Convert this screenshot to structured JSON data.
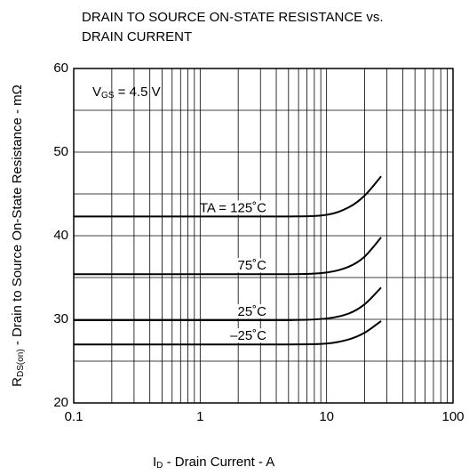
{
  "chart_data": {
    "type": "line",
    "title": [
      "DRAIN TO SOURCE ON-STATE RESISTANCE vs.",
      "DRAIN CURRENT"
    ],
    "x_label": {
      "main": "I",
      "sub": "D",
      "rest": " - Drain Current - A"
    },
    "y_label": {
      "main": "R",
      "sub": "DS(on)",
      "rest": " - Drain to Source On-State Resistance - mΩ"
    },
    "annotation": {
      "main": "V",
      "sub": "GS",
      "rest": " = 4.5 V"
    },
    "x": [
      0.1,
      1,
      5,
      10,
      15,
      20,
      27
    ],
    "series": [
      {
        "name": "TA = 125˚C",
        "color": "#000000",
        "values": [
          42.3,
          42.3,
          42.3,
          42.5,
          43.4,
          44.8,
          47.1
        ]
      },
      {
        "name": "75˚C",
        "color": "#000000",
        "values": [
          35.4,
          35.4,
          35.4,
          35.6,
          36.3,
          37.5,
          39.8
        ]
      },
      {
        "name": "25˚C",
        "color": "#000000",
        "values": [
          29.9,
          29.9,
          29.9,
          30.1,
          30.7,
          31.8,
          33.8
        ]
      },
      {
        "name": "–25˚C",
        "color": "#000000",
        "values": [
          27.0,
          27.0,
          27.0,
          27.1,
          27.6,
          28.4,
          29.8
        ]
      }
    ],
    "xscale": "log",
    "xlim": [
      0.1,
      100
    ],
    "xticks": [
      0.1,
      1,
      10,
      100
    ],
    "ylim": [
      20,
      60
    ],
    "yticks": [
      20,
      30,
      40,
      50,
      60
    ],
    "yminorticks": [
      25,
      35,
      45,
      55
    ],
    "grid": true
  }
}
